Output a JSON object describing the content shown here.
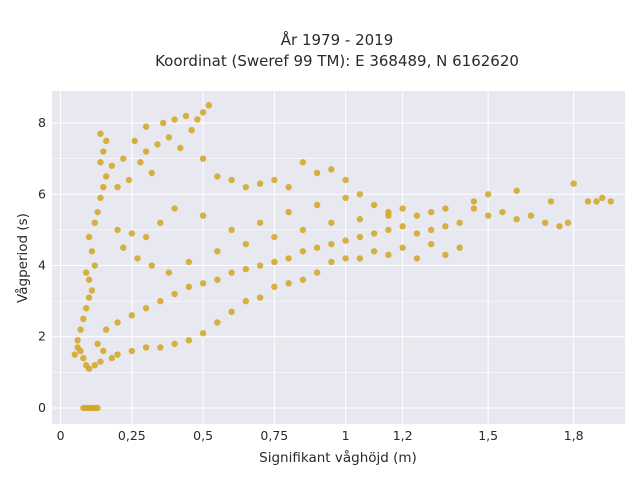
{
  "chart_data": {
    "type": "scatter",
    "title": "År 1979 - 2019",
    "subtitle": "Koordinat (Sweref 99 TM): E 368489, N 6162620",
    "xlabel": "Signifikant våghöjd (m)",
    "ylabel": "Vågperiod (s)",
    "xlim": [
      -0.03,
      1.98
    ],
    "ylim": [
      -0.45,
      8.9
    ],
    "x_ticks": [
      0,
      0.25,
      0.5,
      0.75,
      1,
      1.2,
      1.5,
      1.8
    ],
    "x_tick_labels": [
      "0",
      "0,25",
      "0,5",
      "0,75",
      "1",
      "1,2",
      "1,5",
      "1,8"
    ],
    "y_ticks": [
      0,
      2,
      4,
      6,
      8
    ],
    "y_tick_labels": [
      "0",
      "2",
      "4",
      "6",
      "8"
    ],
    "grid": true,
    "colors": {
      "points": "#D4A420",
      "plot_background": "#E8E8F0",
      "grid": "#ffffff"
    },
    "series": [
      {
        "points": [
          [
            0.08,
            0
          ],
          [
            0.09,
            0
          ],
          [
            0.1,
            0
          ],
          [
            0.11,
            0
          ],
          [
            0.12,
            0
          ],
          [
            0.13,
            0
          ],
          [
            0.05,
            1.5
          ],
          [
            0.06,
            1.7
          ],
          [
            0.07,
            1.6
          ],
          [
            0.08,
            1.4
          ],
          [
            0.09,
            1.2
          ],
          [
            0.1,
            1.1
          ],
          [
            0.12,
            1.2
          ],
          [
            0.14,
            1.3
          ],
          [
            0.06,
            1.9
          ],
          [
            0.07,
            2.2
          ],
          [
            0.08,
            2.5
          ],
          [
            0.09,
            2.8
          ],
          [
            0.1,
            3.1
          ],
          [
            0.11,
            3.3
          ],
          [
            0.1,
            3.6
          ],
          [
            0.09,
            3.8
          ],
          [
            0.12,
            4.0
          ],
          [
            0.11,
            4.4
          ],
          [
            0.1,
            4.8
          ],
          [
            0.12,
            5.2
          ],
          [
            0.13,
            5.5
          ],
          [
            0.14,
            5.9
          ],
          [
            0.15,
            6.2
          ],
          [
            0.16,
            6.5
          ],
          [
            0.14,
            6.9
          ],
          [
            0.15,
            7.2
          ],
          [
            0.16,
            7.5
          ],
          [
            0.14,
            7.7
          ],
          [
            0.18,
            6.8
          ],
          [
            0.2,
            6.2
          ],
          [
            0.22,
            7.0
          ],
          [
            0.24,
            6.4
          ],
          [
            0.26,
            7.5
          ],
          [
            0.28,
            6.9
          ],
          [
            0.3,
            7.9
          ],
          [
            0.3,
            7.2
          ],
          [
            0.32,
            6.6
          ],
          [
            0.34,
            7.4
          ],
          [
            0.36,
            8.0
          ],
          [
            0.38,
            7.6
          ],
          [
            0.4,
            8.1
          ],
          [
            0.42,
            7.3
          ],
          [
            0.44,
            8.2
          ],
          [
            0.46,
            7.8
          ],
          [
            0.48,
            8.1
          ],
          [
            0.5,
            7.0
          ],
          [
            0.52,
            8.5
          ],
          [
            0.5,
            8.3
          ],
          [
            0.55,
            6.5
          ],
          [
            0.6,
            6.4
          ],
          [
            0.65,
            6.2
          ],
          [
            0.7,
            6.3
          ],
          [
            0.75,
            6.4
          ],
          [
            0.8,
            6.2
          ],
          [
            0.85,
            6.9
          ],
          [
            0.9,
            6.6
          ],
          [
            0.95,
            6.7
          ],
          [
            1.0,
            6.4
          ],
          [
            1.05,
            6.0
          ],
          [
            1.1,
            5.7
          ],
          [
            1.15,
            5.5
          ],
          [
            1.2,
            5.6
          ],
          [
            1.25,
            5.4
          ],
          [
            1.3,
            5.5
          ],
          [
            1.35,
            5.6
          ],
          [
            1.4,
            5.2
          ],
          [
            1.45,
            5.6
          ],
          [
            1.5,
            5.4
          ],
          [
            1.55,
            5.5
          ],
          [
            1.6,
            5.3
          ],
          [
            1.65,
            5.4
          ],
          [
            1.7,
            5.2
          ],
          [
            1.75,
            5.1
          ],
          [
            1.8,
            6.3
          ],
          [
            1.85,
            5.8
          ],
          [
            1.88,
            5.8
          ],
          [
            1.9,
            5.9
          ],
          [
            1.93,
            5.8
          ],
          [
            1.78,
            5.2
          ],
          [
            1.72,
            5.8
          ],
          [
            1.6,
            6.1
          ],
          [
            1.5,
            6.0
          ],
          [
            1.45,
            5.8
          ],
          [
            1.4,
            4.5
          ],
          [
            1.35,
            4.3
          ],
          [
            1.3,
            4.6
          ],
          [
            1.25,
            4.2
          ],
          [
            1.2,
            4.5
          ],
          [
            1.15,
            4.3
          ],
          [
            1.1,
            4.4
          ],
          [
            1.05,
            4.2
          ],
          [
            1.0,
            4.2
          ],
          [
            0.95,
            4.1
          ],
          [
            0.9,
            3.8
          ],
          [
            0.85,
            3.6
          ],
          [
            0.8,
            3.5
          ],
          [
            0.75,
            3.4
          ],
          [
            0.7,
            3.1
          ],
          [
            0.65,
            3.0
          ],
          [
            0.6,
            2.7
          ],
          [
            0.55,
            2.4
          ],
          [
            0.5,
            2.1
          ],
          [
            0.45,
            1.9
          ],
          [
            0.4,
            1.8
          ],
          [
            0.35,
            1.7
          ],
          [
            0.3,
            1.7
          ],
          [
            0.25,
            1.6
          ],
          [
            0.2,
            1.5
          ],
          [
            0.18,
            1.4
          ],
          [
            0.15,
            1.6
          ],
          [
            0.13,
            1.8
          ],
          [
            0.16,
            2.2
          ],
          [
            0.2,
            2.4
          ],
          [
            0.25,
            2.6
          ],
          [
            0.3,
            2.8
          ],
          [
            0.35,
            3.0
          ],
          [
            0.4,
            3.2
          ],
          [
            0.45,
            3.4
          ],
          [
            0.5,
            3.5
          ],
          [
            0.55,
            3.6
          ],
          [
            0.6,
            3.8
          ],
          [
            0.65,
            3.9
          ],
          [
            0.7,
            4.0
          ],
          [
            0.75,
            4.1
          ],
          [
            0.8,
            4.2
          ],
          [
            0.85,
            4.4
          ],
          [
            0.9,
            4.5
          ],
          [
            0.95,
            4.6
          ],
          [
            1.0,
            4.7
          ],
          [
            1.05,
            4.8
          ],
          [
            1.1,
            4.9
          ],
          [
            1.15,
            5.0
          ],
          [
            1.2,
            5.1
          ],
          [
            1.25,
            4.9
          ],
          [
            1.3,
            5.0
          ],
          [
            1.35,
            5.1
          ],
          [
            0.6,
            5.0
          ],
          [
            0.7,
            5.2
          ],
          [
            0.8,
            5.5
          ],
          [
            0.9,
            5.7
          ],
          [
            1.0,
            5.9
          ],
          [
            0.5,
            5.4
          ],
          [
            0.4,
            5.6
          ],
          [
            0.35,
            5.2
          ],
          [
            0.3,
            4.8
          ],
          [
            0.25,
            4.9
          ],
          [
            0.2,
            5.0
          ],
          [
            0.22,
            4.5
          ],
          [
            0.27,
            4.2
          ],
          [
            0.32,
            4.0
          ],
          [
            0.38,
            3.8
          ],
          [
            0.45,
            4.1
          ],
          [
            0.55,
            4.4
          ],
          [
            0.65,
            4.6
          ],
          [
            0.75,
            4.8
          ],
          [
            0.85,
            5.0
          ],
          [
            0.95,
            5.2
          ],
          [
            1.05,
            5.3
          ],
          [
            1.15,
            5.4
          ]
        ]
      }
    ]
  }
}
